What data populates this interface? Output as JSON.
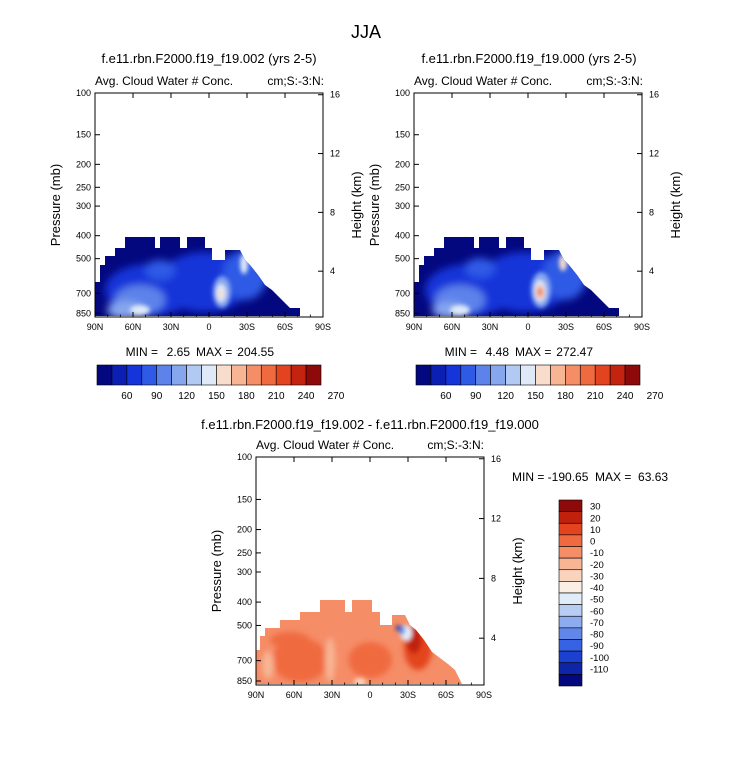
{
  "figure": {
    "title": "JJA"
  },
  "chart_data": [
    {
      "type": "heatmap",
      "title": "f.e11.rbn.F2000.f19_f19.002 (yrs 2-5)",
      "left_string": "Avg. Cloud Water # Conc.",
      "right_string": "cm;S:-3:N:",
      "ylabel": "Pressure (mb)",
      "y2label": "Height (km)",
      "x_ticks": [
        "90N",
        "60N",
        "30N",
        "0",
        "30S",
        "60S",
        "90S"
      ],
      "y_ticks": [
        "100",
        "150",
        "200",
        "250",
        "300",
        "400",
        "500",
        "700",
        "850"
      ],
      "y2_ticks": [
        "16",
        "12",
        "8",
        "4"
      ],
      "min_label": "MIN =",
      "min_value": "2.65",
      "max_label": "MAX =",
      "max_value": "204.55",
      "colorbar_labels": [
        "60",
        "90",
        "120",
        "150",
        "180",
        "210",
        "240",
        "270"
      ],
      "colorbar_colors": [
        "#04087f",
        "#0b1fb3",
        "#1534d9",
        "#2f5ae6",
        "#5d83ea",
        "#86a6ee",
        "#b2c9f3",
        "#dfe9f8",
        "#f8dccc",
        "#f8b594",
        "#f58d67",
        "#f06a40",
        "#e3441f",
        "#c4240f",
        "#8e0909"
      ]
    },
    {
      "type": "heatmap",
      "title": "f.e11.rbn.F2000.f19_f19.000 (yrs 2-5)",
      "left_string": "Avg. Cloud Water # Conc.",
      "right_string": "cm;S:-3:N:",
      "ylabel": "Pressure (mb)",
      "y2label": "Height (km)",
      "x_ticks": [
        "90N",
        "60N",
        "30N",
        "0",
        "30S",
        "60S",
        "90S"
      ],
      "y_ticks": [
        "100",
        "150",
        "200",
        "250",
        "300",
        "400",
        "500",
        "700",
        "850"
      ],
      "y2_ticks": [
        "16",
        "12",
        "8",
        "4"
      ],
      "min_label": "MIN =",
      "min_value": "4.48",
      "max_label": "MAX =",
      "max_value": "272.47",
      "colorbar_labels": [
        "60",
        "90",
        "120",
        "150",
        "180",
        "210",
        "240",
        "270"
      ],
      "colorbar_colors": [
        "#04087f",
        "#0b1fb3",
        "#1534d9",
        "#2f5ae6",
        "#5d83ea",
        "#86a6ee",
        "#b2c9f3",
        "#dfe9f8",
        "#f8dccc",
        "#f8b594",
        "#f58d67",
        "#f06a40",
        "#e3441f",
        "#c4240f",
        "#8e0909"
      ]
    },
    {
      "type": "heatmap",
      "title": "f.e11.rbn.F2000.f19_f19.002 - f.e11.rbn.F2000.f19_f19.000",
      "left_string": "Avg. Cloud Water # Conc.",
      "right_string": "cm;S:-3:N:",
      "ylabel": "Pressure (mb)",
      "y2label": "Height (km)",
      "x_ticks": [
        "90N",
        "60N",
        "30N",
        "0",
        "30S",
        "60S",
        "90S"
      ],
      "y_ticks": [
        "100",
        "150",
        "200",
        "250",
        "300",
        "400",
        "500",
        "700",
        "850"
      ],
      "y2_ticks": [
        "16",
        "12",
        "8",
        "4"
      ],
      "minmax_text": "MIN = -190.65  MAX =  63.63",
      "colorbar_labels": [
        "30",
        "20",
        "10",
        "0",
        "-10",
        "-20",
        "-30",
        "-40",
        "-50",
        "-60",
        "-70",
        "-80",
        "-90",
        "-100",
        "-110"
      ],
      "colorbar_colors": [
        "#8e0909",
        "#c0210d",
        "#e3441f",
        "#f06a40",
        "#f58d67",
        "#f8b594",
        "#fad3bd",
        "#fbeee4",
        "#e1ecf9",
        "#b7cdf4",
        "#8dabef",
        "#6087e9",
        "#3762e3",
        "#1c40cf",
        "#0e25a8",
        "#04087f"
      ]
    }
  ]
}
